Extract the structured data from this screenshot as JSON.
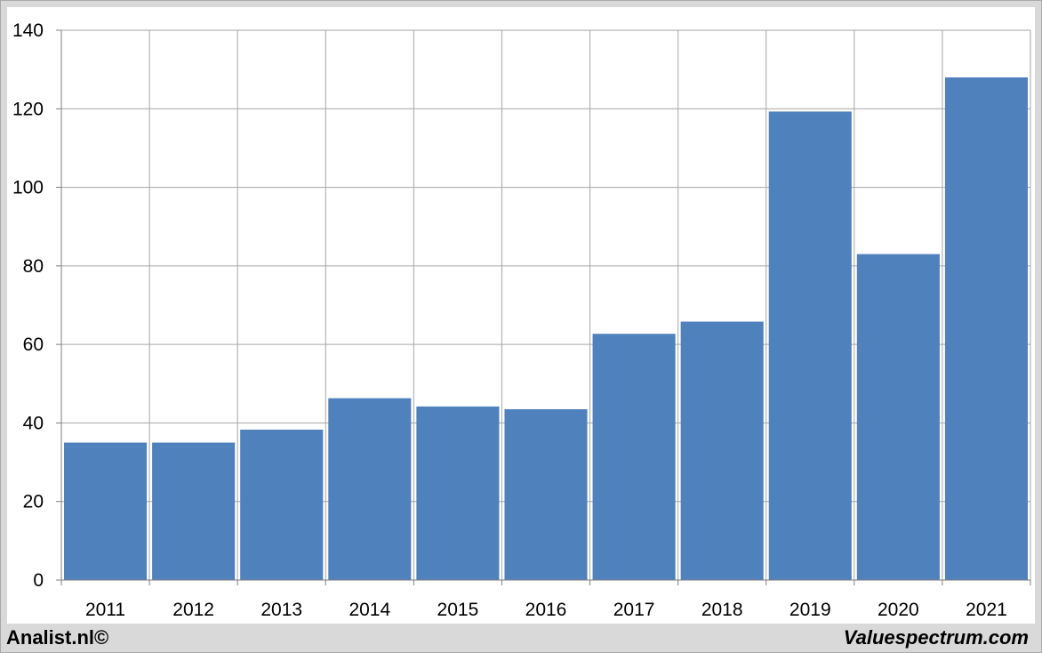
{
  "footer": {
    "left_text": "Analist.nl©",
    "right_text": "Valuespectrum.com"
  },
  "colors": {
    "bar": "#4f81bd",
    "grid": "#a6a6a6",
    "axis": "#7f7f7f",
    "frame_background": "#d9d9d9"
  },
  "chart_data": {
    "type": "bar",
    "categories": [
      "2011",
      "2012",
      "2013",
      "2014",
      "2015",
      "2016",
      "2017",
      "2018",
      "2019",
      "2020",
      "2021"
    ],
    "values": [
      35,
      35,
      38.3,
      46.3,
      44.2,
      43.5,
      62.7,
      65.8,
      119.3,
      83,
      128
    ],
    "title": "",
    "xlabel": "",
    "ylabel": "",
    "ylim": [
      0,
      140
    ],
    "yticks": [
      0,
      20,
      40,
      60,
      80,
      100,
      120,
      140
    ],
    "grid": true,
    "legend": "none"
  }
}
